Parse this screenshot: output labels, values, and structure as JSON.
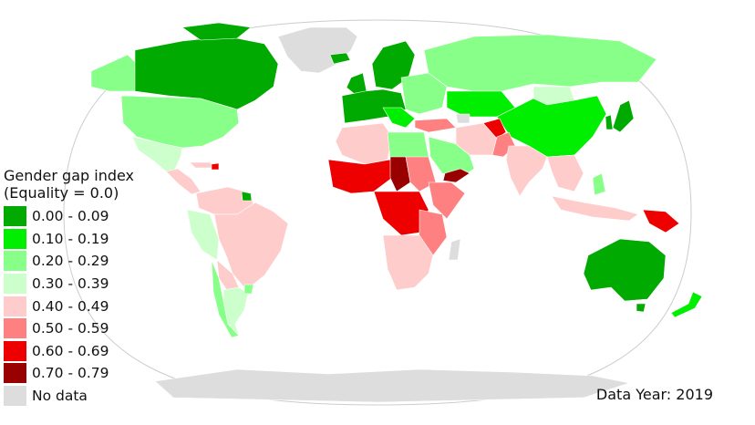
{
  "legend": {
    "title_line1": "Gender gap index",
    "title_line2": "(Equality = 0.0)",
    "items": [
      {
        "label": "0.00 - 0.09",
        "color": "#00aa00"
      },
      {
        "label": "0.10 - 0.19",
        "color": "#00ee00"
      },
      {
        "label": "0.20 - 0.29",
        "color": "#88ff88"
      },
      {
        "label": "0.30 - 0.39",
        "color": "#ccffcc"
      },
      {
        "label": "0.40 - 0.49",
        "color": "#ffcccc"
      },
      {
        "label": "0.50 - 0.59",
        "color": "#ff8080"
      },
      {
        "label": "0.60 - 0.69",
        "color": "#ee0000"
      },
      {
        "label": "0.70 - 0.79",
        "color": "#990000"
      },
      {
        "label": "No data",
        "color": "#dddddd"
      }
    ]
  },
  "data_year": "Data Year: 2019",
  "colors": {
    "ocean": "#ffffff",
    "outline": "#cccccc",
    "border": "#ffffff"
  }
}
